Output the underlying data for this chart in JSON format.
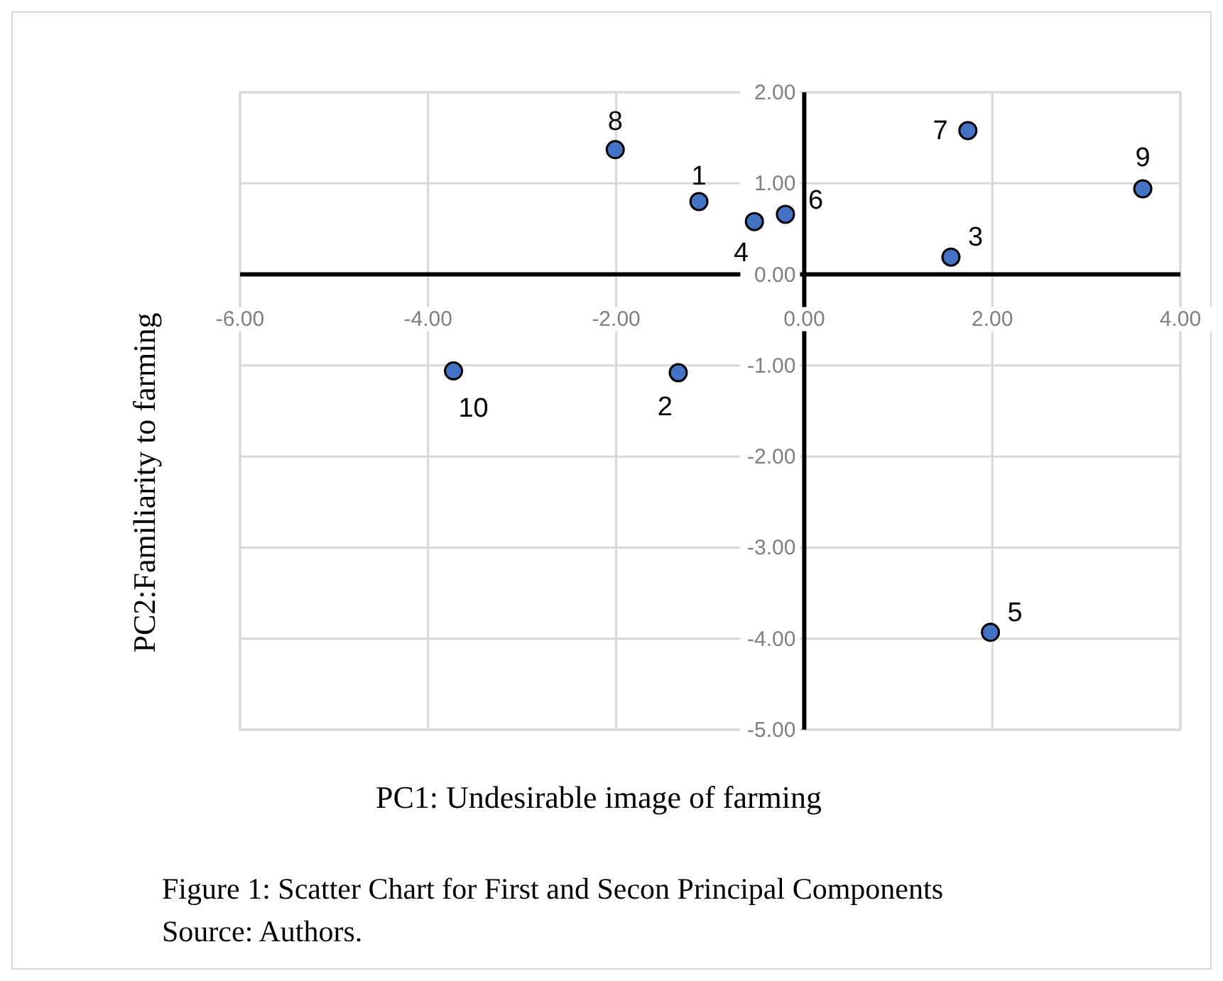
{
  "chart_data": {
    "type": "scatter",
    "xlabel": "PC1: Undesirable image of farming",
    "ylabel": "PC2:Familiarity to farming",
    "annotations": [
      "Figure 1: Scatter Chart for First and Secon Principal Components",
      "Source: Authors.",
      {
        "text": "1",
        "x": -1.12,
        "y": 0.8
      },
      {
        "text": "2",
        "x": -1.34,
        "y": -1.08
      },
      {
        "text": "3",
        "x": 1.56,
        "y": 0.19
      },
      {
        "text": "4",
        "x": -0.53,
        "y": 0.58
      },
      {
        "text": "5",
        "x": 1.98,
        "y": -3.93
      },
      {
        "text": "6",
        "x": -0.2,
        "y": 0.66
      },
      {
        "text": "7",
        "x": 1.74,
        "y": 1.58
      },
      {
        "text": "8",
        "x": -2.01,
        "y": 1.37
      },
      {
        "text": "9",
        "x": 3.6,
        "y": 0.94
      },
      {
        "text": "10",
        "x": -3.73,
        "y": -1.06
      }
    ],
    "x": [
      -1.12,
      -1.34,
      1.56,
      -0.53,
      1.98,
      -0.2,
      1.74,
      -2.01,
      3.6,
      -3.73
    ],
    "values": [
      0.8,
      -1.08,
      0.19,
      0.58,
      -3.93,
      0.66,
      1.58,
      1.37,
      0.94,
      -1.06
    ],
    "color": "#4472c4",
    "marker": "circle",
    "grid": true,
    "xlim": [
      -6,
      4
    ],
    "xticks": [
      {
        "value": -6,
        "label": "-6.00"
      },
      {
        "value": -4,
        "label": "-4.00"
      },
      {
        "value": -2,
        "label": "-2.00"
      },
      {
        "value": 0,
        "label": "0.00"
      },
      {
        "value": 2,
        "label": "2.00"
      },
      {
        "value": 4,
        "label": "4.00"
      }
    ],
    "ylim": [
      -5,
      2
    ],
    "yticks": [
      {
        "value": -5,
        "label": "-5.00"
      },
      {
        "value": -4,
        "label": "-4.00"
      },
      {
        "value": -3,
        "label": "-3.00"
      },
      {
        "value": -2,
        "label": "-2.00"
      },
      {
        "value": -1,
        "label": "-1.00"
      },
      {
        "value": 0,
        "label": "0.00"
      },
      {
        "value": 1,
        "label": "1.00"
      },
      {
        "value": 2,
        "label": "2.00"
      }
    ]
  }
}
